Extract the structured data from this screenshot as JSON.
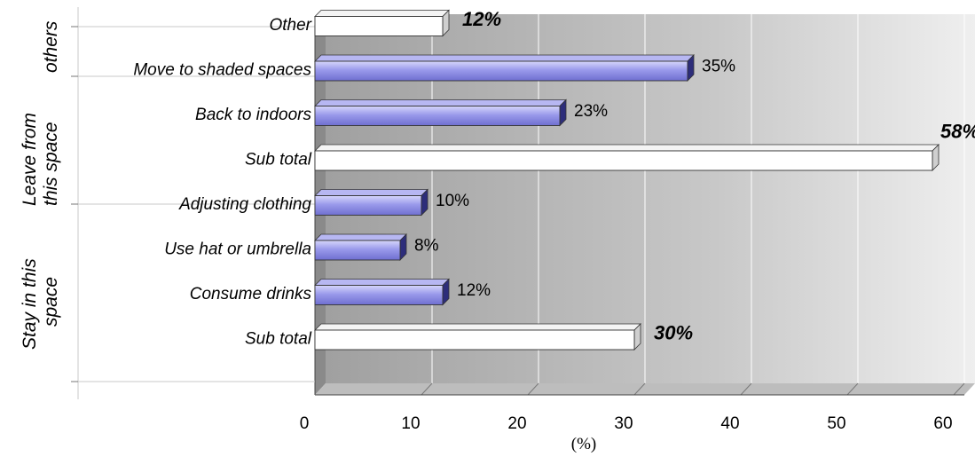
{
  "chart_data": {
    "type": "bar",
    "orientation": "horizontal",
    "categories": [
      "Other",
      "Move to shaded spaces",
      "Back to indoors",
      "Sub total",
      "Adjusting clothing",
      "Use hat or umbrella",
      "Consume drinks",
      "Sub total"
    ],
    "values": [
      12,
      35,
      23,
      58,
      10,
      8,
      12,
      30
    ],
    "value_labels": [
      "12%",
      "35%",
      "23%",
      "58%",
      "10%",
      "8%",
      "12%",
      "30%"
    ],
    "subtotal_flags": [
      true,
      false,
      false,
      true,
      false,
      false,
      false,
      true
    ],
    "groups": [
      {
        "label_lines": [
          "Leave from",
          "this space"
        ],
        "categories": [
          "Move to shaded spaces",
          "Back to indoors",
          "Sub total"
        ]
      },
      {
        "label_lines": [
          "others"
        ],
        "categories": [
          "Other"
        ]
      },
      {
        "label_lines": [
          "Stay in this",
          "space"
        ],
        "categories": [
          "Adjusting clothing",
          "Use hat or umbrella",
          "Consume drinks",
          "Sub total"
        ]
      }
    ],
    "xlim": [
      0,
      60
    ],
    "xticks": [
      "0",
      "10",
      "20",
      "30",
      "40",
      "50",
      "60"
    ],
    "xlabel": "(%)",
    "grid": true,
    "colors": {
      "bar_fill": "#8c8ce6",
      "bar_fill_light": "#c4c4f4",
      "bar_dark": "#2d2d7a",
      "subtotal_fill": "#ffffff",
      "plot_bg_light": "#ececec",
      "plot_bg_dark": "#9b9b9b"
    }
  }
}
